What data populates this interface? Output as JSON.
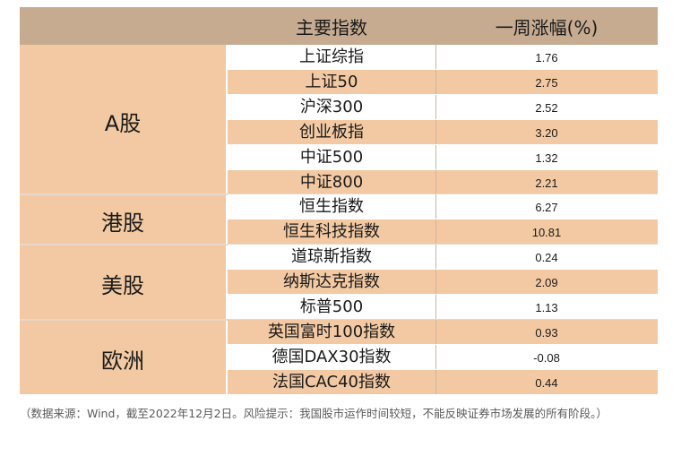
{
  "table": {
    "header": {
      "index_col": "主要指数",
      "change_col": "一周涨幅(%)"
    },
    "regions": [
      {
        "label": "A股",
        "rows": [
          {
            "name": "上证综指",
            "value": "1.76"
          },
          {
            "name": "上证50",
            "value": "2.75"
          },
          {
            "name": "沪深300",
            "value": "2.52"
          },
          {
            "name": "创业板指",
            "value": "3.20"
          },
          {
            "name": "中证500",
            "value": "1.32"
          },
          {
            "name": "中证800",
            "value": "2.21"
          }
        ]
      },
      {
        "label": "港股",
        "rows": [
          {
            "name": "恒生指数",
            "value": "6.27"
          },
          {
            "name": "恒生科技指数",
            "value": "10.81"
          }
        ]
      },
      {
        "label": "美股",
        "rows": [
          {
            "name": "道琼斯指数",
            "value": "0.24"
          },
          {
            "name": "纳斯达克指数",
            "value": "2.09"
          },
          {
            "name": "标普500",
            "value": "1.13"
          }
        ]
      },
      {
        "label": "欧洲",
        "rows": [
          {
            "name": "英国富时100指数",
            "value": "0.93"
          },
          {
            "name": "德国DAX30指数",
            "value": "-0.08"
          },
          {
            "name": "法国CAC40指数",
            "value": "0.44"
          }
        ]
      }
    ]
  },
  "footnote": "（数据来源：Wind，截至2022年12月2日。风险提示：我国股市运作时间较短，不能反映证券市场发展的所有阶段。）",
  "colors": {
    "header_bg": "#c6ab90",
    "peach": "#f2c9a2",
    "white": "#ffffff"
  }
}
